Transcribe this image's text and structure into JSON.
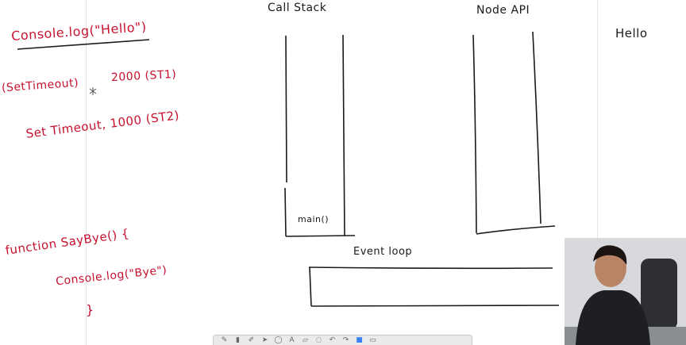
{
  "left_notes": {
    "line1": "Console.log(\"Hello\")",
    "line2": "(SetTimeout)",
    "line2_arg": "2000 (ST1)",
    "line3": "Set Timeout, 1000 (ST2)",
    "function_line": "function SayBye() {",
    "function_body": "Console.log(\"Bye\")",
    "function_close": "}"
  },
  "diagram": {
    "call_stack_label": "Call Stack",
    "main_frame_label": "main()",
    "node_api_label": "Node API",
    "event_loop_label": "Event loop"
  },
  "output": {
    "line1": "Hello"
  },
  "toolbar": {
    "tools": [
      "pen-icon",
      "highlighter-icon",
      "marker-icon",
      "arrow-icon",
      "shape-icon",
      "text-icon",
      "eraser-icon",
      "lasso-icon",
      "undo-icon",
      "redo-icon",
      "color-icon",
      "settings-icon"
    ]
  },
  "colors": {
    "ink_red": "#c8102e",
    "ink_black": "#1a1a1a"
  }
}
